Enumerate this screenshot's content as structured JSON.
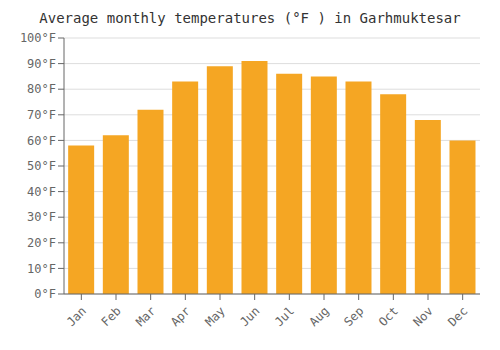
{
  "chart_data": {
    "type": "bar",
    "title": "Average monthly temperatures (°F ) in Garhmuktesar",
    "categories": [
      "Jan",
      "Feb",
      "Mar",
      "Apr",
      "May",
      "Jun",
      "Jul",
      "Aug",
      "Sep",
      "Oct",
      "Nov",
      "Dec"
    ],
    "values": [
      58,
      62,
      72,
      83,
      89,
      91,
      86,
      85,
      83,
      78,
      68,
      60
    ],
    "color": "#F5A623",
    "ylim": [
      0,
      100
    ],
    "yticks": [
      {
        "value": 0,
        "label": "0°F"
      },
      {
        "value": 10,
        "label": "10°F"
      },
      {
        "value": 20,
        "label": "20°F"
      },
      {
        "value": 30,
        "label": "30°F"
      },
      {
        "value": 40,
        "label": "40°F"
      },
      {
        "value": 50,
        "label": "50°F"
      },
      {
        "value": 60,
        "label": "60°F"
      },
      {
        "value": 70,
        "label": "70°F"
      },
      {
        "value": 80,
        "label": "80°F"
      },
      {
        "value": 90,
        "label": "90°F"
      },
      {
        "value": 100,
        "label": "100°F"
      }
    ],
    "grid": true
  }
}
